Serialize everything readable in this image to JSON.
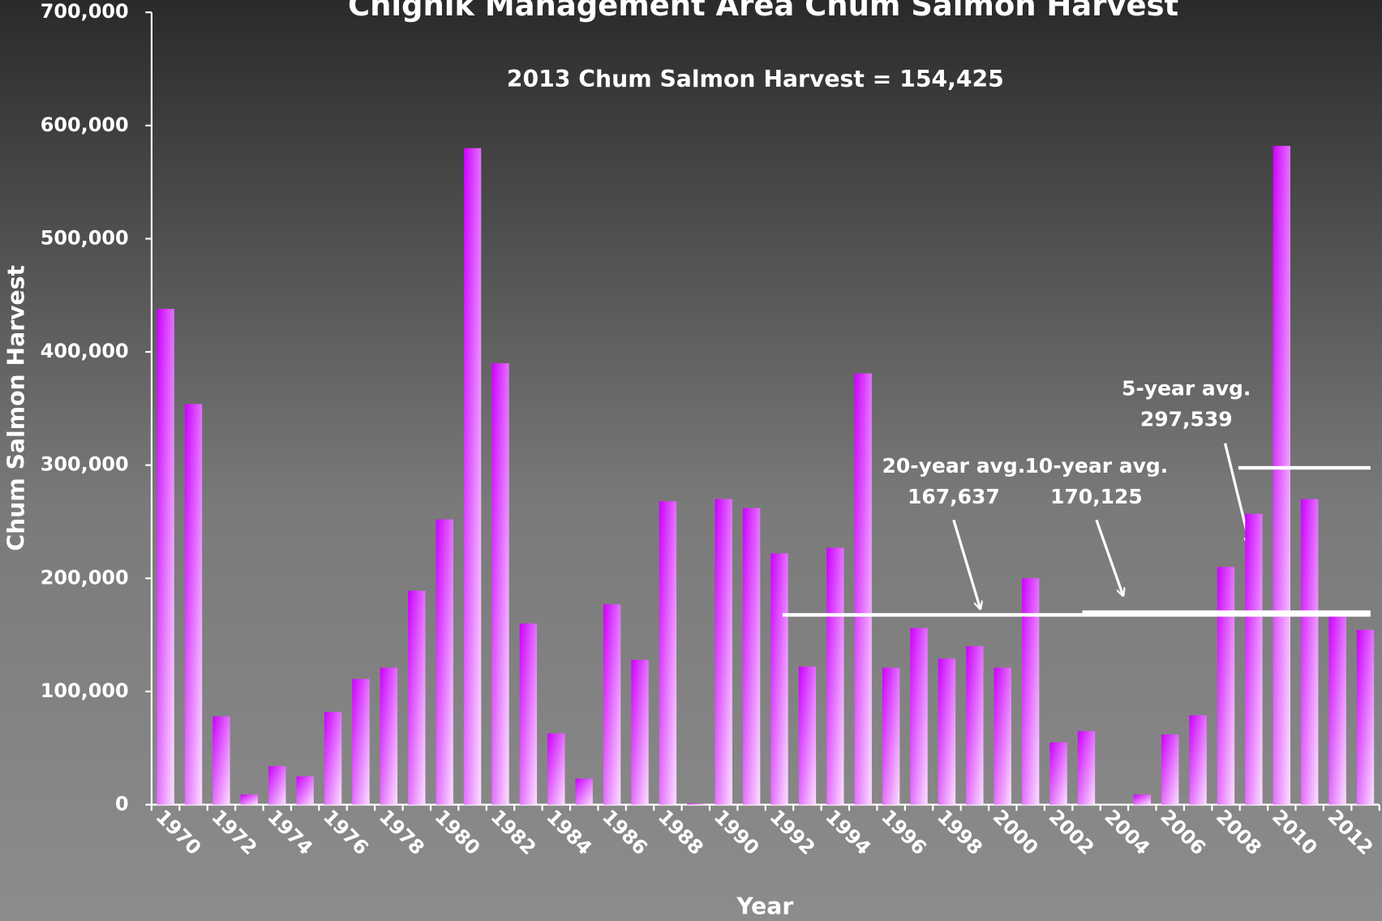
{
  "chart_data": {
    "type": "bar",
    "title": "Chignik Management Area Chum Salmon Harvest",
    "subtitle": "2013  Chum Salmon Harvest = 154,425",
    "x_label": "Year",
    "y_label": "Chum Salmon Harvest",
    "color": "#cc00ff",
    "categories": [
      "1970",
      null,
      "1972",
      null,
      "1974",
      null,
      "1976",
      null,
      "1978",
      null,
      "1980",
      null,
      "1982",
      null,
      "1984",
      null,
      "1986",
      null,
      "1988",
      null,
      "1990",
      null,
      "1992",
      null,
      "1994",
      null,
      "1996",
      null,
      "1998",
      null,
      "2000",
      null,
      "2002",
      null,
      "2004",
      null,
      "2006",
      null,
      "2008",
      null,
      "2010",
      null,
      "2012",
      null
    ],
    "values": [
      438000,
      354000,
      78000,
      9000,
      34000,
      25000,
      82000,
      111000,
      121000,
      189000,
      252000,
      580000,
      390000,
      160000,
      63000,
      23000,
      177000,
      128000,
      268000,
      1000,
      270000,
      262000,
      222000,
      122000,
      227000,
      381000,
      121000,
      156000,
      129000,
      140000,
      121000,
      200000,
      55000,
      65000,
      0,
      9000,
      62000,
      79000,
      210000,
      257000,
      582000,
      270000,
      170000,
      154425
    ],
    "ylim": [
      0,
      700000
    ],
    "yticks": [
      0,
      {
        "value": 100000,
        "label": "100,000"
      },
      {
        "value": 200000,
        "label": "200,000"
      },
      {
        "value": 300000,
        "label": "300,000"
      },
      {
        "value": 400000,
        "label": "400,000"
      },
      {
        "value": 500000,
        "label": "500,000"
      },
      {
        "value": 600000,
        "label": "600,000"
      },
      {
        "value": 700000,
        "label": "700,000"
      }
    ],
    "grid": false,
    "annotations": [
      {
        "text": "20-year avg.",
        "value": 167637,
        "value_label": "167,637"
      },
      {
        "text": "10-year avg.",
        "value": 170125,
        "value_label": "170,125"
      },
      {
        "text": "5-year avg.",
        "value": 297539,
        "value_label": "297,539"
      }
    ]
  }
}
